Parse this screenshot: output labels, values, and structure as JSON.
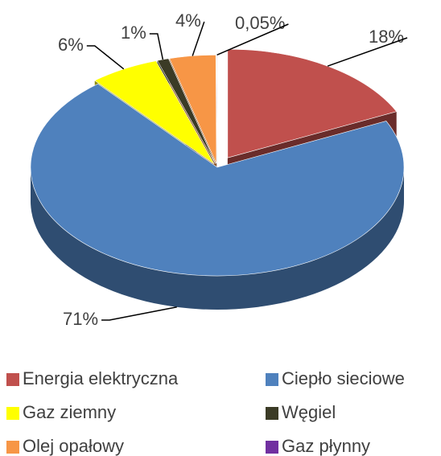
{
  "chart_data": {
    "type": "pie3d",
    "categories": [
      "Energia elektryczna",
      "Ciepło sieciowe",
      "Gaz ziemny",
      "Węgiel",
      "Olej opałowy",
      "Gaz płynny"
    ],
    "values": [
      18,
      71,
      6,
      1,
      4,
      0.05
    ],
    "value_labels": [
      "18%",
      "71%",
      "6%",
      "1%",
      "4%",
      "0,05%"
    ],
    "colors": [
      "#c0504d",
      "#4f81bd",
      "#ffff00",
      "#3b3b26",
      "#f79646",
      "#7030a0"
    ],
    "legend": "bottom"
  }
}
